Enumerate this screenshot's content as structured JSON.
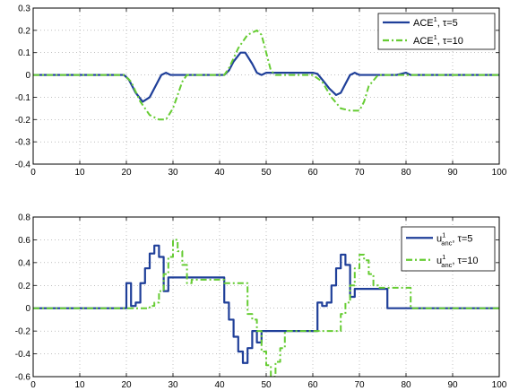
{
  "chart_data": [
    {
      "type": "line",
      "title": "",
      "xlabel": "",
      "ylabel": "",
      "xlim": [
        0,
        100
      ],
      "ylim": [
        -0.4,
        0.3
      ],
      "xticks": [
        0,
        10,
        20,
        30,
        40,
        50,
        60,
        70,
        80,
        90,
        100
      ],
      "yticks": [
        -0.4,
        -0.3,
        -0.2,
        -0.1,
        0,
        0.1,
        0.2,
        0.3
      ],
      "xtick_labels": [
        "0",
        "10",
        "20",
        "30",
        "40",
        "50",
        "60",
        "70",
        "80",
        "90",
        "100"
      ],
      "ytick_labels": [
        "-0.4",
        "-0.3",
        "-0.2",
        "-0.1",
        "0",
        "0.1",
        "0.2",
        "0.3"
      ],
      "grid": true,
      "legend_position": "top-right",
      "series": [
        {
          "legend": {
            "base": "ACE",
            "sup": "1",
            "suffix": ", τ=5"
          },
          "color": "#1f3f99",
          "style": "solid",
          "x": [
            0,
            19.5,
            20.5,
            22,
            23.5,
            25,
            26.5,
            27.5,
            28.5,
            29.5,
            41,
            42,
            43,
            44.5,
            45.5,
            47,
            48,
            49,
            50,
            60,
            61,
            62,
            63.5,
            65,
            66,
            67,
            68,
            69,
            70,
            78,
            79,
            80,
            81,
            100
          ],
          "y": [
            0,
            0,
            -0.02,
            -0.08,
            -0.12,
            -0.1,
            -0.04,
            0,
            0.01,
            0,
            0,
            0.02,
            0.06,
            0.1,
            0.1,
            0.05,
            0.01,
            0,
            0.01,
            0.01,
            0.005,
            -0.02,
            -0.06,
            -0.09,
            -0.08,
            -0.04,
            0,
            0.01,
            0,
            0,
            0.005,
            0.01,
            0,
            0
          ]
        },
        {
          "legend": {
            "base": "ACE",
            "sup": "1",
            "suffix": ", τ=10"
          },
          "color": "#66cc33",
          "style": "dashdot",
          "x": [
            0,
            19.5,
            21,
            23,
            25,
            27,
            28.5,
            30,
            32,
            33,
            41,
            42,
            44,
            46,
            48,
            49,
            50,
            51,
            52,
            60,
            62,
            64,
            66,
            68,
            70,
            71,
            72,
            74,
            76,
            100
          ],
          "y": [
            0,
            0,
            -0.03,
            -0.12,
            -0.18,
            -0.2,
            -0.2,
            -0.15,
            -0.03,
            0,
            0,
            0.03,
            0.12,
            0.18,
            0.2,
            0.18,
            0.1,
            0.02,
            0,
            0,
            -0.03,
            -0.1,
            -0.15,
            -0.16,
            -0.16,
            -0.12,
            -0.05,
            0,
            0,
            0
          ]
        }
      ]
    },
    {
      "type": "line",
      "title": "",
      "xlabel": "",
      "ylabel": "",
      "xlim": [
        0,
        100
      ],
      "ylim": [
        -0.6,
        0.8
      ],
      "xticks": [
        0,
        10,
        20,
        30,
        40,
        50,
        60,
        70,
        80,
        90,
        100
      ],
      "yticks": [
        -0.6,
        -0.4,
        -0.2,
        0,
        0.2,
        0.4,
        0.6,
        0.8
      ],
      "xtick_labels": [
        "0",
        "10",
        "20",
        "30",
        "40",
        "50",
        "60",
        "70",
        "80",
        "90",
        "100"
      ],
      "ytick_labels": [
        "-0.6",
        "-0.4",
        "-0.2",
        "0",
        "0.2",
        "0.4",
        "0.6",
        "0.8"
      ],
      "grid": true,
      "legend_position": "top-right",
      "series": [
        {
          "legend": {
            "base": "u",
            "sup": "1",
            "sub": "anc",
            "suffix": ", τ=5"
          },
          "color": "#1f3f99",
          "style": "solid",
          "x": [
            0,
            20,
            20,
            21,
            21,
            22,
            22,
            23,
            23,
            24,
            24,
            25,
            25,
            26,
            26,
            27,
            27,
            28,
            28,
            29,
            29,
            41,
            41,
            42,
            42,
            43,
            43,
            44,
            44,
            45,
            45,
            46,
            46,
            47,
            47,
            48,
            48,
            49,
            49,
            61,
            61,
            62,
            62,
            63,
            63,
            64,
            64,
            65,
            65,
            66,
            66,
            67,
            67,
            68,
            68,
            69,
            69,
            76,
            76,
            100
          ],
          "y": [
            0,
            0,
            0.22,
            0.22,
            0.02,
            0.02,
            0.05,
            0.05,
            0.22,
            0.22,
            0.35,
            0.35,
            0.48,
            0.48,
            0.55,
            0.55,
            0.45,
            0.45,
            0.15,
            0.15,
            0.27,
            0.27,
            0.05,
            0.05,
            -0.1,
            -0.1,
            -0.25,
            -0.25,
            -0.38,
            -0.38,
            -0.48,
            -0.48,
            -0.35,
            -0.35,
            -0.2,
            -0.2,
            -0.3,
            -0.3,
            -0.2,
            -0.2,
            0.05,
            0.05,
            0.02,
            0.02,
            0.05,
            0.05,
            0.2,
            0.2,
            0.35,
            0.35,
            0.47,
            0.47,
            0.38,
            0.38,
            0.1,
            0.1,
            0.17,
            0.17,
            0,
            0
          ]
        },
        {
          "legend": {
            "base": "u",
            "sup": "1",
            "sub": "anc",
            "suffix": ", τ=10"
          },
          "color": "#66cc33",
          "style": "dashdot",
          "x": [
            0,
            25,
            25,
            26,
            26,
            27,
            27,
            28,
            28,
            29,
            29,
            30,
            30,
            31,
            31,
            32,
            32,
            33,
            33,
            34,
            34,
            41,
            41,
            46,
            46,
            47,
            47,
            48,
            48,
            49,
            49,
            50,
            50,
            51,
            51,
            52,
            52,
            53,
            53,
            54,
            54,
            66,
            66,
            67,
            67,
            68,
            68,
            69,
            69,
            70,
            70,
            71,
            71,
            72,
            72,
            73,
            73,
            74,
            74,
            81,
            81,
            100
          ],
          "y": [
            0,
            0,
            0.02,
            0.02,
            0.05,
            0.05,
            0.15,
            0.15,
            0.3,
            0.3,
            0.45,
            0.45,
            0.6,
            0.6,
            0.5,
            0.5,
            0.38,
            0.38,
            0.22,
            0.22,
            0.25,
            0.25,
            0.22,
            0.22,
            -0.05,
            -0.05,
            -0.1,
            -0.1,
            -0.2,
            -0.2,
            -0.38,
            -0.38,
            -0.5,
            -0.5,
            -0.6,
            -0.6,
            -0.47,
            -0.47,
            -0.35,
            -0.35,
            -0.2,
            -0.2,
            -0.05,
            -0.05,
            0.05,
            0.05,
            0.2,
            0.2,
            0.35,
            0.35,
            0.47,
            0.47,
            0.42,
            0.42,
            0.3,
            0.3,
            0.2,
            0.2,
            0.18,
            0.18,
            0,
            0
          ]
        }
      ]
    }
  ]
}
